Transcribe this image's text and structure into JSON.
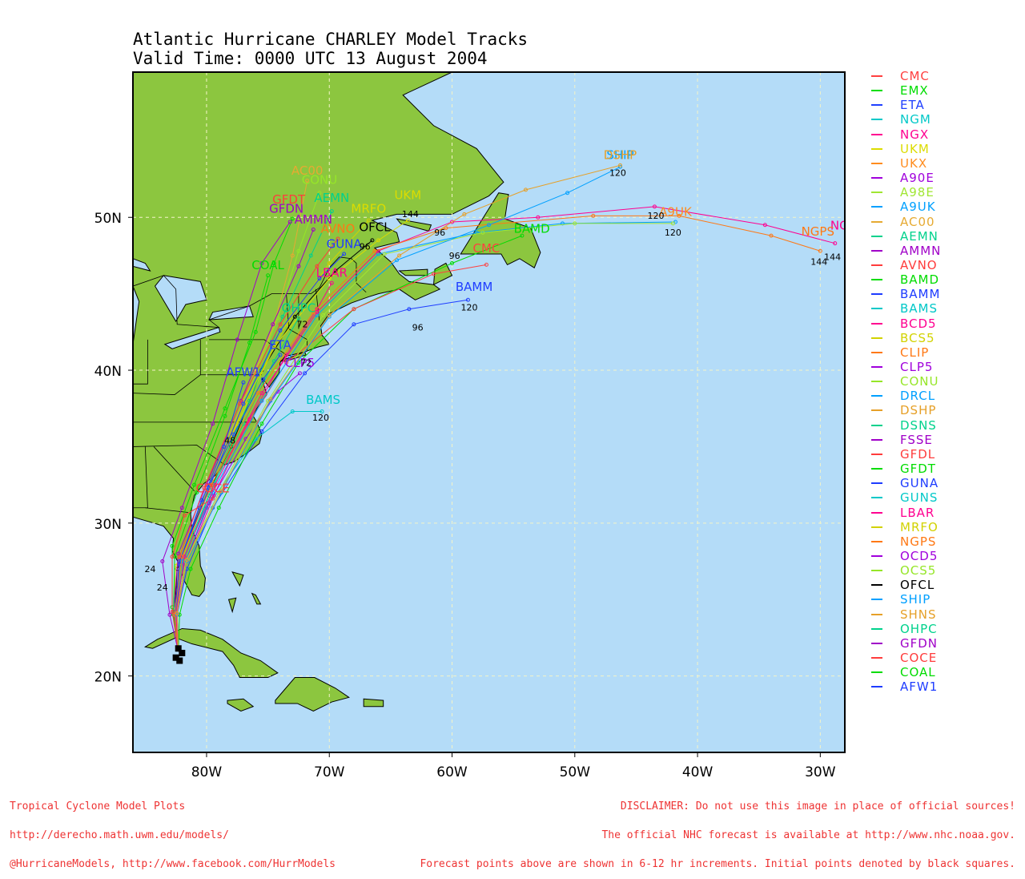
{
  "title_line1": "Atlantic Hurricane CHARLEY Model Tracks",
  "title_line2": "Valid Time: 0000 UTC 13 August 2004",
  "map": {
    "lon_range": [
      -86,
      -28
    ],
    "lat_range": [
      15,
      59.5
    ],
    "lon_ticks": [
      {
        "lon": -80,
        "label": "80W"
      },
      {
        "lon": -70,
        "label": "70W"
      },
      {
        "lon": -60,
        "label": "60W"
      },
      {
        "lon": -50,
        "label": "50W"
      },
      {
        "lon": -40,
        "label": "40W"
      },
      {
        "lon": -30,
        "label": "30W"
      }
    ],
    "lat_ticks": [
      {
        "lat": 20,
        "label": "20N"
      },
      {
        "lat": 30,
        "label": "30N"
      },
      {
        "lat": 40,
        "label": "40N"
      },
      {
        "lat": 50,
        "label": "50N"
      }
    ],
    "ocean_color": "#b4dcf8",
    "land_color": "#8cc63f",
    "grid_color": "#f4f4c8"
  },
  "legend": [
    {
      "name": "CMC",
      "color": "#ff4040"
    },
    {
      "name": "EMX",
      "color": "#00dd00"
    },
    {
      "name": "ETA",
      "color": "#2040ff"
    },
    {
      "name": "NGM",
      "color": "#00c8c8"
    },
    {
      "name": "NGX",
      "color": "#ff0090"
    },
    {
      "name": "UKM",
      "color": "#dcdc00"
    },
    {
      "name": "UKX",
      "color": "#ff8c1e"
    },
    {
      "name": "A90E",
      "color": "#a000dc"
    },
    {
      "name": "A98E",
      "color": "#a0e632"
    },
    {
      "name": "A9UK",
      "color": "#00a0ff"
    },
    {
      "name": "AC00",
      "color": "#e6aa32"
    },
    {
      "name": "AEMN",
      "color": "#00d28c"
    },
    {
      "name": "AMMN",
      "color": "#a000c8"
    },
    {
      "name": "AVNO",
      "color": "#ff3c3c"
    },
    {
      "name": "BAMD",
      "color": "#00dc00"
    },
    {
      "name": "BAMM",
      "color": "#1e3cff"
    },
    {
      "name": "BAMS",
      "color": "#00c8c8"
    },
    {
      "name": "BCD5",
      "color": "#ff0090"
    },
    {
      "name": "BCS5",
      "color": "#d2d200"
    },
    {
      "name": "CLIP",
      "color": "#ff7814"
    },
    {
      "name": "CLP5",
      "color": "#a000dc"
    },
    {
      "name": "CONU",
      "color": "#96e628"
    },
    {
      "name": "DRCL",
      "color": "#00a0ff"
    },
    {
      "name": "DSHP",
      "color": "#e6a028"
    },
    {
      "name": "DSNS",
      "color": "#00d28c"
    },
    {
      "name": "FSSE",
      "color": "#a000c8"
    },
    {
      "name": "GFDL",
      "color": "#ff3c3c"
    },
    {
      "name": "GFDT",
      "color": "#00dc00"
    },
    {
      "name": "GUNA",
      "color": "#1e3cff"
    },
    {
      "name": "GUNS",
      "color": "#00c8c8"
    },
    {
      "name": "LBAR",
      "color": "#ff0090"
    },
    {
      "name": "MRFO",
      "color": "#d2d200"
    },
    {
      "name": "NGPS",
      "color": "#ff7814"
    },
    {
      "name": "OCD5",
      "color": "#a000dc"
    },
    {
      "name": "OCS5",
      "color": "#96e628"
    },
    {
      "name": "OFCL",
      "color": "#000000"
    },
    {
      "name": "SHIP",
      "color": "#00a0ff"
    },
    {
      "name": "SHNS",
      "color": "#e6a028"
    },
    {
      "name": "OHPC",
      "color": "#00d28c"
    },
    {
      "name": "GFDN",
      "color": "#a000c8"
    },
    {
      "name": "COCE",
      "color": "#ff3c3c"
    },
    {
      "name": "COAL",
      "color": "#00dc00"
    },
    {
      "name": "AFW1",
      "color": "#1e3cff"
    }
  ],
  "track_labels": [
    {
      "text": "SHIP",
      "lon": -46.3,
      "lat": 53.8,
      "color": "#00a0ff"
    },
    {
      "text": "DSHP",
      "lon": -46.3,
      "lat": 53.8,
      "color": "#e6a028"
    },
    {
      "text": "120",
      "lon": -46.5,
      "lat": 52.7,
      "color": "#000000"
    },
    {
      "text": "AC00",
      "lon": -71.8,
      "lat": 52.8,
      "color": "#e6aa32"
    },
    {
      "text": "CONU",
      "lon": -70.8,
      "lat": 52.2,
      "color": "#96e628"
    },
    {
      "text": "UKM",
      "lon": -63.6,
      "lat": 51.2,
      "color": "#dcdc00"
    },
    {
      "text": "144",
      "lon": -63.4,
      "lat": 50.0,
      "color": "#000000"
    },
    {
      "text": "GFDT",
      "lon": -73.3,
      "lat": 50.9,
      "color": "#ff3c3c"
    },
    {
      "text": "AEMN",
      "lon": -69.8,
      "lat": 51.0,
      "color": "#00d28c"
    },
    {
      "text": "GFDN",
      "lon": -73.5,
      "lat": 50.3,
      "color": "#a000c8"
    },
    {
      "text": "AMMN",
      "lon": -71.3,
      "lat": 49.6,
      "color": "#a000c8"
    },
    {
      "text": "MRFO",
      "lon": -66.8,
      "lat": 50.3,
      "color": "#dcdc00"
    },
    {
      "text": "AVNO",
      "lon": -69.3,
      "lat": 49.0,
      "color": "#ff7814"
    },
    {
      "text": "OFCL",
      "lon": -66.3,
      "lat": 49.1,
      "color": "#000000"
    },
    {
      "text": "GUNA",
      "lon": -68.8,
      "lat": 48.0,
      "color": "#1e3cff"
    },
    {
      "text": "BAMD",
      "lon": -53.5,
      "lat": 49.0,
      "color": "#00dc00"
    },
    {
      "text": "CMC",
      "lon": -57.2,
      "lat": 47.7,
      "color": "#ff4040"
    },
    {
      "text": "LBAR",
      "lon": -69.8,
      "lat": 46.1,
      "color": "#ff0090"
    },
    {
      "text": "COAL",
      "lon": -75.0,
      "lat": 46.6,
      "color": "#00dc00"
    },
    {
      "text": "BAMM",
      "lon": -58.2,
      "lat": 45.2,
      "color": "#1e3cff"
    },
    {
      "text": "120",
      "lon": -58.6,
      "lat": 43.9,
      "color": "#000000"
    },
    {
      "text": "OHPC",
      "lon": -72.5,
      "lat": 43.8,
      "color": "#00d28c"
    },
    {
      "text": "ETA",
      "lon": -74.0,
      "lat": 41.4,
      "color": "#2040ff"
    },
    {
      "text": "CLP5",
      "lon": -72.4,
      "lat": 40.2,
      "color": "#a000dc"
    },
    {
      "text": "AFW1",
      "lon": -77.0,
      "lat": 39.6,
      "color": "#1e3cff"
    },
    {
      "text": "BAMS",
      "lon": -70.5,
      "lat": 37.8,
      "color": "#00c8c8"
    },
    {
      "text": "120",
      "lon": -70.7,
      "lat": 36.7,
      "color": "#000000"
    },
    {
      "text": "NGX",
      "lon": -28.1,
      "lat": 49.2,
      "color": "#ff0090"
    },
    {
      "text": "NGPS",
      "lon": -30.2,
      "lat": 48.8,
      "color": "#ff7814"
    },
    {
      "text": "144",
      "lon": -29.0,
      "lat": 47.2,
      "color": "#000000"
    },
    {
      "text": "144",
      "lon": -30.1,
      "lat": 46.9,
      "color": "#000000"
    },
    {
      "text": "A9UK",
      "lon": -41.8,
      "lat": 50.1,
      "color": "#ff8c1e"
    },
    {
      "text": "120",
      "lon": -42.0,
      "lat": 48.8,
      "color": "#000000"
    },
    {
      "text": "120",
      "lon": -43.4,
      "lat": 49.9,
      "color": "#000000"
    },
    {
      "text": "COCE",
      "lon": -79.5,
      "lat": 32.0,
      "color": "#ff3c3c"
    },
    {
      "text": "96",
      "lon": -61.0,
      "lat": 48.8,
      "color": "#000000"
    },
    {
      "text": "96",
      "lon": -59.8,
      "lat": 47.3,
      "color": "#000000"
    },
    {
      "text": "96",
      "lon": -67.1,
      "lat": 47.9,
      "color": "#000000"
    },
    {
      "text": "96",
      "lon": -62.8,
      "lat": 42.6,
      "color": "#000000"
    },
    {
      "text": "72",
      "lon": -72.2,
      "lat": 42.8,
      "color": "#000000"
    },
    {
      "text": "72",
      "lon": -71.9,
      "lat": 40.3,
      "color": "#000000"
    },
    {
      "text": "48",
      "lon": -78.1,
      "lat": 35.2,
      "color": "#000000"
    },
    {
      "text": "24",
      "lon": -84.6,
      "lat": 26.8,
      "color": "#000000"
    },
    {
      "text": "24",
      "lon": -83.6,
      "lat": 25.6,
      "color": "#000000"
    }
  ],
  "footer_left": [
    "Tropical Cyclone Model Plots",
    "http://derecho.math.uwm.edu/models/",
    "@HurricaneModels, http://www.facebook.com/HurrModels"
  ],
  "footer_right": [
    "DISCLAIMER: Do not use this image in place of official sources!",
    "The official NHC forecast is available at http://www.nhc.noaa.gov.",
    "Forecast points above are shown in 6-12 hr increments. Initial points denoted by black squares."
  ]
}
